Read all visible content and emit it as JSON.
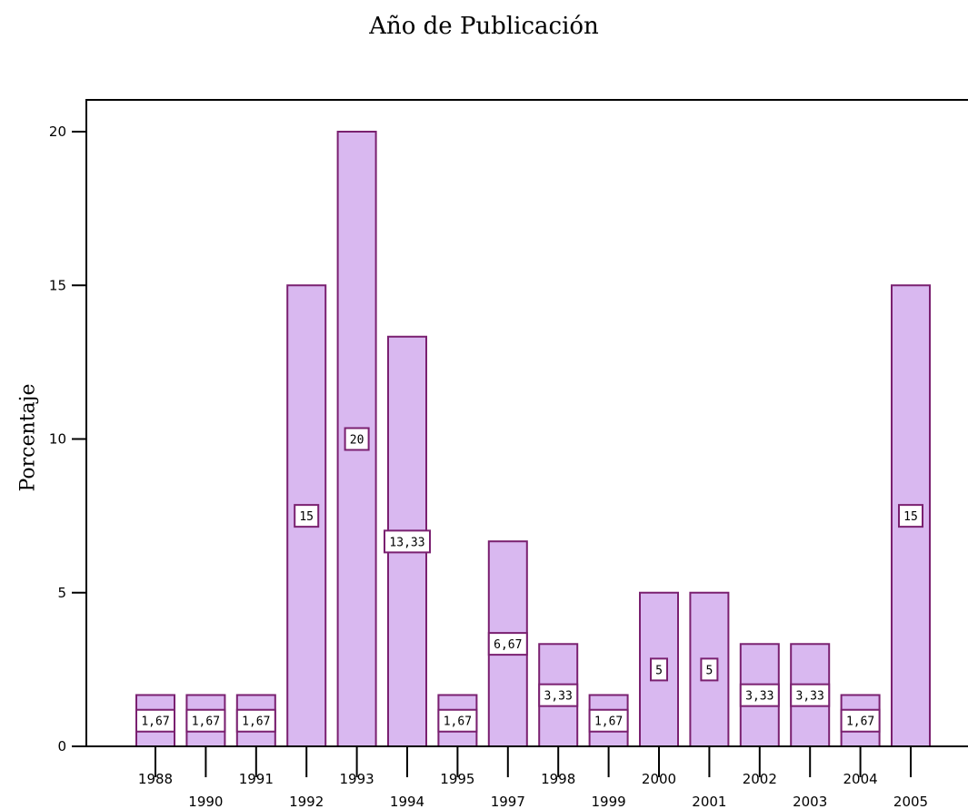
{
  "chart_data": {
    "type": "bar",
    "title": "Año de Publicación",
    "xlabel": "",
    "ylabel": "Porcentaje",
    "ylim": [
      0,
      20
    ],
    "yticks": [
      0,
      5,
      10,
      15,
      20
    ],
    "grid": false,
    "legend": "none",
    "categories": [
      "1988",
      "1990",
      "1991",
      "1992",
      "1993",
      "1994",
      "1995",
      "1997",
      "1998",
      "1999",
      "2000",
      "2001",
      "2002",
      "2003",
      "2004",
      "2005"
    ],
    "values": [
      1.67,
      1.67,
      1.67,
      15,
      20,
      13.33,
      1.67,
      6.67,
      3.33,
      1.67,
      5,
      5,
      3.33,
      3.33,
      1.67,
      15
    ],
    "value_labels": [
      "1,67",
      "1,67",
      "1,67",
      "15",
      "20",
      "13,33",
      "1,67",
      "6,67",
      "3,33",
      "1,67",
      "5",
      "5",
      "3,33",
      "3,33",
      "1,67",
      "15"
    ],
    "colors": {
      "bar_fill": "#d9b8f0",
      "bar_stroke": "#7a2070",
      "label_stroke": "#7a2070",
      "axis": "#000000"
    }
  }
}
